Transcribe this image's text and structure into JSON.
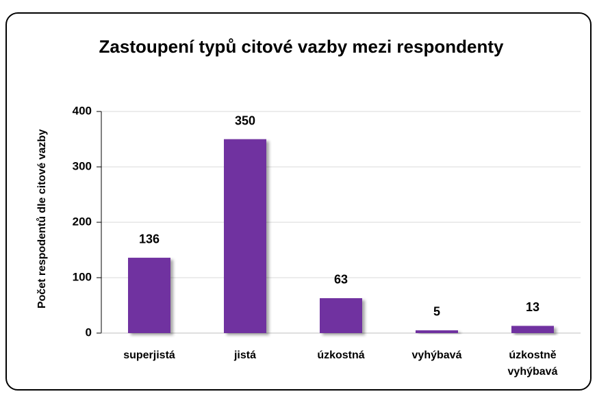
{
  "chart_data": {
    "type": "bar",
    "title": "Zastoupení typů citové vazby mezi respondenty",
    "y_label": "Počet respodentů dle citové vazby",
    "categories": [
      "superjistá",
      "jistá",
      "úzkostná",
      "vyhýbavá",
      "úzkostně vyhýbavá"
    ],
    "values": [
      136,
      350,
      63,
      5,
      13
    ],
    "color": "#7030a0",
    "ylim": [
      0,
      400
    ],
    "yticks": [
      0,
      100,
      200,
      300,
      400
    ],
    "grid": true
  }
}
